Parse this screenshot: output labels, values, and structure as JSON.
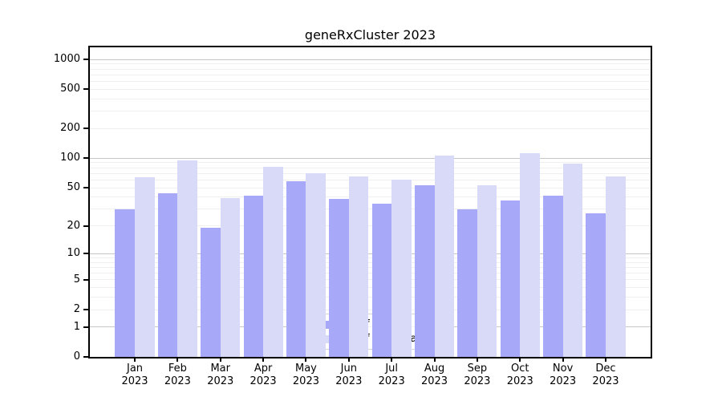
{
  "title": "geneRxCluster 2023",
  "colors": {
    "ips_bar": "#a8a8f8",
    "downloads_bar": "#d9d9f8",
    "grid_major": "#c6c6c6",
    "grid_minor": "#efefef",
    "axis": "#000000"
  },
  "legend": {
    "items": [
      {
        "label": "Nb of distinct IPs"
      },
      {
        "label": "Nb of downloads"
      }
    ]
  },
  "chart_data": {
    "type": "bar",
    "title": "geneRxCluster 2023",
    "categories": [
      "Jan 2023",
      "Feb 2023",
      "Mar 2023",
      "Apr 2023",
      "May 2023",
      "Jun 2023",
      "Jul 2023",
      "Aug 2023",
      "Sep 2023",
      "Oct 2023",
      "Nov 2023",
      "Dec 2023"
    ],
    "series": [
      {
        "name": "Nb of distinct IPs",
        "color": "#a8a8f8",
        "values": [
          30,
          44,
          19,
          41,
          58,
          38,
          34,
          53,
          30,
          37,
          41,
          27
        ]
      },
      {
        "name": "Nb of downloads",
        "color": "#d9d9f8",
        "values": [
          64,
          96,
          39,
          82,
          70,
          65,
          60,
          106,
          53,
          112,
          88,
          65
        ]
      }
    ],
    "xlabel": "",
    "ylabel": "",
    "y_ticks": [
      0,
      1,
      2,
      5,
      10,
      20,
      50,
      100,
      200,
      500,
      1000
    ],
    "y_scale": "log10(1+x)",
    "ylim": [
      0,
      1330
    ],
    "grid": true,
    "legend_position": "lower center"
  }
}
